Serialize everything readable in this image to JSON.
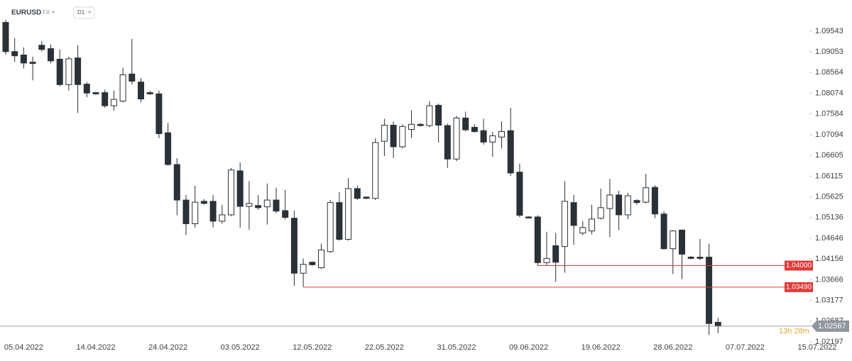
{
  "chart_data": {
    "type": "candlestick",
    "symbol": "EURUSD",
    "market": "FX",
    "timeframe": "D1",
    "countdown": "13h 28m",
    "up_color": "#ffffff",
    "down_color": "#2a3137",
    "level_color": "#e03a3a",
    "categories": [
      null,
      null,
      "05.04.2022",
      null,
      null,
      null,
      null,
      null,
      null,
      null,
      "14.04.2022",
      null,
      null,
      null,
      null,
      null,
      null,
      null,
      "24.04.2022",
      null,
      null,
      null,
      null,
      null,
      null,
      null,
      "03.05.2022",
      null,
      null,
      null,
      null,
      null,
      null,
      null,
      "12.05.2022",
      null,
      null,
      null,
      null,
      null,
      null,
      null,
      "22.05.2022",
      null,
      null,
      null,
      null,
      null,
      null,
      null,
      "31.05.2022",
      null,
      null,
      null,
      null,
      null,
      null,
      null,
      "09.06.2022",
      null,
      null,
      null,
      null,
      null,
      null,
      null,
      "19.06.2022",
      null,
      null,
      null,
      null,
      null,
      null,
      null,
      "28.06.2022",
      null,
      null,
      null,
      null,
      null,
      null,
      null,
      "07.07.2022",
      null,
      null,
      null,
      null,
      null,
      null,
      null,
      "15.07.2022"
    ],
    "open": [
      1.0975,
      1.0906,
      1.0898,
      1.0881,
      1.0921,
      1.0913,
      1.0888,
      1.0828,
      1.0891,
      1.0829,
      1.0809,
      1.0809,
      1.0778,
      1.0789,
      1.0853,
      1.0834,
      1.0809,
      1.0806,
      1.0714,
      1.0639,
      1.0555,
      1.0499,
      1.0552,
      1.0552,
      1.0505,
      1.052,
      1.0624,
      1.054,
      1.0542,
      1.0539,
      1.0555,
      1.053,
      1.0512,
      1.0382,
      1.0408,
      1.0395,
      1.0433,
      1.0549,
      1.0462,
      1.0582,
      1.0562,
      1.0559,
      1.0694,
      1.0732,
      1.0681,
      1.0722,
      1.0734,
      1.0731,
      1.0779,
      1.0731,
      1.0652,
      1.0749,
      1.0727,
      1.0719,
      1.0692,
      1.0704,
      1.0719,
      1.0621,
      1.0515,
      1.0515,
      1.0407,
      1.0447,
      1.0445,
      1.0549,
      1.0477,
      1.0482,
      1.0512,
      1.0535,
      1.0567,
      1.052,
      1.0554,
      1.055,
      1.0585,
      1.0522,
      1.044,
      1.0484,
      1.042,
      1.042,
      1.042,
      1.0266,
      null,
      null,
      null,
      null,
      null,
      null,
      null,
      null,
      null,
      null,
      null
    ],
    "high": [
      1.0981,
      1.0938,
      1.0916,
      1.0894,
      1.0931,
      1.0923,
      1.0911,
      1.0894,
      1.0921,
      1.0834,
      1.0811,
      1.0816,
      1.0814,
      1.0868,
      1.0936,
      1.0844,
      1.0813,
      1.0814,
      1.0737,
      1.0654,
      1.0567,
      1.0589,
      1.0557,
      1.0567,
      1.0544,
      1.0631,
      1.0644,
      1.06,
      1.0567,
      1.0594,
      1.0584,
      1.0579,
      1.053,
      1.0417,
      1.041,
      1.0452,
      1.0555,
      1.0574,
      1.0607,
      1.0589,
      1.0564,
      1.0701,
      1.0747,
      1.0741,
      1.0734,
      1.0767,
      1.0737,
      1.0789,
      1.0783,
      1.0736,
      1.0754,
      1.0764,
      1.0734,
      1.0747,
      1.0716,
      1.0741,
      1.0773,
      1.0641,
      1.0517,
      1.0519,
      1.048,
      1.0477,
      1.06,
      1.0567,
      1.0505,
      1.0544,
      1.0582,
      1.0605,
      1.0577,
      1.0572,
      1.0557,
      1.0617,
      1.059,
      1.0529,
      1.0484,
      1.0485,
      1.0423,
      1.0463,
      1.0452,
      1.0276,
      null,
      null,
      null,
      null,
      null,
      null,
      null,
      null,
      null,
      null,
      null
    ],
    "low": [
      1.0899,
      1.0881,
      1.0866,
      1.0838,
      1.0906,
      1.0878,
      1.0824,
      1.0814,
      1.0761,
      1.0798,
      1.0804,
      1.0773,
      1.0766,
      1.0786,
      1.0828,
      1.0786,
      1.0804,
      1.0701,
      1.0636,
      1.0519,
      1.0472,
      1.049,
      1.0544,
      1.049,
      1.0499,
      1.0517,
      1.049,
      1.0485,
      1.0532,
      1.0497,
      1.0524,
      1.0509,
      1.0352,
      1.035,
      1.04,
      1.0392,
      1.043,
      1.0459,
      1.0459,
      1.0555,
      1.0557,
      1.0555,
      1.0659,
      1.0654,
      1.0677,
      1.0701,
      1.0729,
      1.0727,
      1.0691,
      1.0631,
      1.0647,
      1.0717,
      1.0714,
      1.0686,
      1.0657,
      1.0677,
      1.0612,
      1.0514,
      1.0512,
      1.04,
      1.04,
      1.0362,
      1.0383,
      1.0449,
      1.0472,
      1.0474,
      1.0509,
      1.0467,
      1.0484,
      1.051,
      1.0544,
      1.0547,
      1.0512,
      1.0437,
      1.038,
      1.0368,
      1.0415,
      1.0413,
      1.0236,
      1.024,
      null,
      null,
      null,
      null,
      null,
      null,
      null,
      null,
      null,
      null,
      null
    ],
    "close": [
      1.0906,
      1.0896,
      1.0879,
      1.0878,
      1.0911,
      1.0884,
      1.0828,
      1.0889,
      1.0828,
      1.0808,
      1.0806,
      1.0778,
      1.0793,
      1.0851,
      1.0836,
      1.0794,
      1.0806,
      1.0712,
      1.0639,
      1.0555,
      1.0499,
      1.055,
      1.0547,
      1.0505,
      1.052,
      1.0626,
      1.054,
      1.0547,
      1.0537,
      1.0555,
      1.0529,
      1.0514,
      1.0382,
      1.0403,
      1.0402,
      1.0437,
      1.0549,
      1.0462,
      1.0582,
      1.0559,
      1.0559,
      1.0691,
      1.0732,
      1.0681,
      1.0729,
      1.0734,
      1.0731,
      1.0778,
      1.0732,
      1.0652,
      1.0749,
      1.0721,
      1.0717,
      1.0692,
      1.0707,
      1.0717,
      1.0619,
      1.0519,
      1.0514,
      1.0407,
      1.0417,
      1.0408,
      1.0552,
      1.0495,
      1.049,
      1.051,
      1.0537,
      1.0567,
      1.052,
      1.0565,
      1.0549,
      1.0584,
      1.0522,
      1.044,
      1.0482,
      1.0427,
      1.0417,
      1.0417,
      1.0263,
      1.02567,
      null,
      null,
      null,
      null,
      null,
      null,
      null,
      null,
      null,
      null,
      null
    ],
    "ylim": [
      1.02197,
      1.1028
    ],
    "yticks": [
      1.09543,
      1.09053,
      1.08564,
      1.08074,
      1.07584,
      1.07094,
      1.06605,
      1.06115,
      1.05625,
      1.05136,
      1.04646,
      1.04156,
      1.03666,
      1.03177,
      1.02687,
      1.02197
    ],
    "levels": [
      {
        "value": 1.04,
        "label": "1.04000"
      },
      {
        "value": 1.0349,
        "label": "1.03490"
      }
    ]
  }
}
